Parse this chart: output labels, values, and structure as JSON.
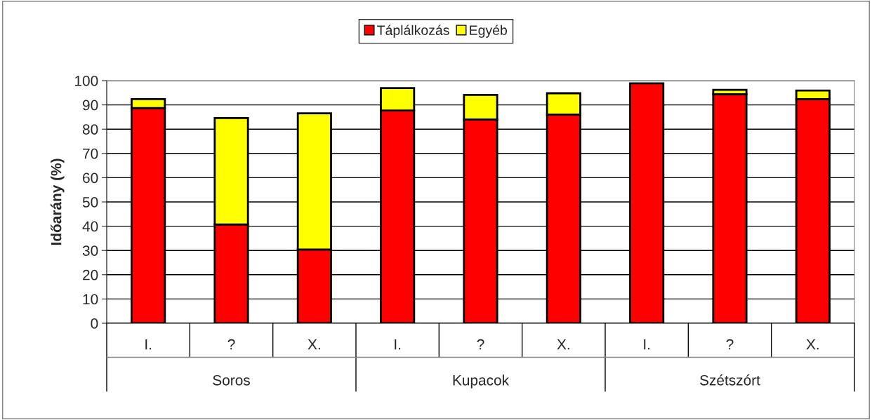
{
  "chart_data": {
    "type": "bar",
    "ylabel": "Időarány (%)",
    "stacked": true,
    "categories": [
      "I.",
      "?",
      "X.",
      "I.",
      "?",
      "X.",
      "I.",
      "?",
      "X."
    ],
    "annotations": [
      "Soros",
      "Kupacok",
      "Szétszórt"
    ],
    "series": [
      {
        "name": "Táplálkozás",
        "color": "#ff0000",
        "values": [
          88.7,
          40.7,
          30.4,
          87.7,
          84.0,
          86.0,
          98.9,
          94.4,
          92.4
        ]
      },
      {
        "name": "Egyéb",
        "color": "#ffff00",
        "values": [
          3.7,
          43.9,
          56.1,
          9.2,
          10.1,
          8.8,
          null,
          1.8,
          3.5
        ]
      }
    ],
    "ylim": [
      0,
      100
    ],
    "yticks": [
      0,
      10,
      20,
      30,
      40,
      50,
      60,
      70,
      80,
      90,
      100
    ],
    "grid": "y",
    "legend": "top"
  }
}
